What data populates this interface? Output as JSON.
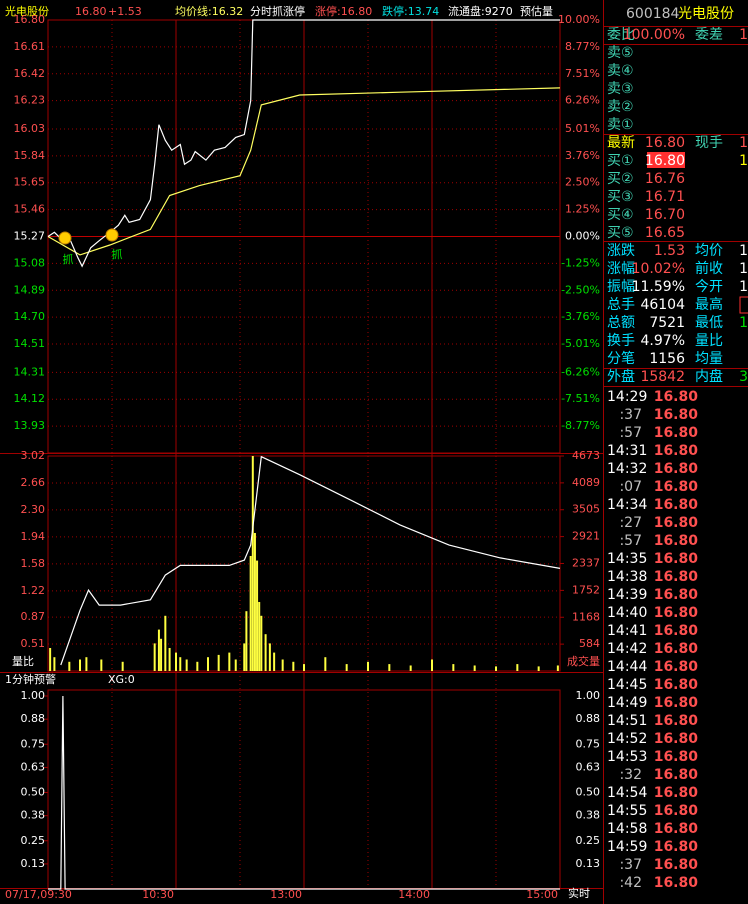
{
  "header": {
    "items": [
      "光电股份",
      "16.80",
      "+1.53",
      "均价线:16.32",
      "分时抓涨停",
      "涨停:16.80",
      "跌停:13.74",
      "流通盘:9270",
      "预估量"
    ]
  },
  "price_panel": {
    "ylim": [
      13.74,
      16.8
    ],
    "yticks": [
      {
        "value": 16.8,
        "label": "16.80"
      },
      16.61,
      16.42,
      16.23,
      16.03,
      15.84,
      15.65,
      15.46,
      15.27,
      15.08,
      14.89,
      {
        "value": 14.7,
        "label": "14.70"
      },
      14.51,
      14.31,
      14.12,
      13.93
    ],
    "pct_ticks": [
      "10.00%",
      "8.77%",
      "7.51%",
      "6.26%",
      "5.01%",
      "3.76%",
      "2.50%",
      "1.25%",
      "0.00%",
      "-1.25%",
      "-2.50%",
      "-3.76%",
      "-5.01%",
      "-6.26%",
      "-7.51%",
      "-8.77%"
    ],
    "price": {
      "x": [
        "09:30",
        "09:33",
        "09:37",
        "09:40",
        "09:44",
        "09:46",
        "09:50",
        "09:54",
        "09:59",
        "10:03",
        "10:06",
        "10:08",
        "10:13",
        "10:18",
        "10:20",
        "10:22",
        "10:25",
        "10:28",
        "10:32",
        "10:34",
        "10:37",
        "10:39",
        "10:44",
        "10:48",
        "10:53",
        "10:58",
        "11:02",
        "11:05",
        "11:06",
        "15:00"
      ],
      "values": [
        15.27,
        15.3,
        15.24,
        15.26,
        15.12,
        15.06,
        15.19,
        15.24,
        15.3,
        15.35,
        15.42,
        15.37,
        15.39,
        15.53,
        15.78,
        16.06,
        15.95,
        15.88,
        15.92,
        15.78,
        15.81,
        15.87,
        15.81,
        15.88,
        15.9,
        15.97,
        15.99,
        16.23,
        16.8,
        16.8
      ]
    },
    "avg": {
      "x": [
        "09:30",
        "09:45",
        "09:59",
        "10:18",
        "10:27",
        "10:41",
        "11:00",
        "11:05",
        "11:10",
        "11:28",
        "13:45",
        "15:00"
      ],
      "values": [
        15.27,
        15.14,
        15.21,
        15.32,
        15.56,
        15.63,
        15.7,
        15.88,
        16.2,
        16.27,
        16.29,
        16.32
      ]
    },
    "annotations": [
      "抓",
      "抓"
    ]
  },
  "volume_panel": {
    "ylim": [
      0,
      4673
    ],
    "ratio_ylim": [
      0.15,
      3.02
    ],
    "ratio_ticks": [
      3.02,
      2.66,
      {
        "value": 2.3,
        "label": "2.30"
      },
      1.94,
      1.58,
      1.22,
      0.87,
      0.51
    ],
    "volume_ticks": [
      4673,
      4089,
      3505,
      2921,
      2337,
      1752,
      1168,
      584
    ],
    "left_label": "量比",
    "right_label": "成交量",
    "volume": {
      "x": [
        "09:31",
        "09:33",
        "09:40",
        "09:45",
        "09:48",
        "09:55",
        "10:05",
        "10:20",
        "10:22",
        "10:23",
        "10:25",
        "10:27",
        "10:30",
        "10:32",
        "10:35",
        "10:40",
        "10:45",
        "10:50",
        "10:55",
        "10:58",
        "11:02",
        "11:03",
        "11:05",
        "11:06",
        "11:07",
        "11:08",
        "11:09",
        "11:10",
        "11:12",
        "11:14",
        "11:16",
        "11:20",
        "11:25",
        "11:30",
        "13:10",
        "13:20",
        "13:30",
        "13:40",
        "13:50",
        "14:00",
        "14:10",
        "14:20",
        "14:30",
        "14:40",
        "14:50",
        "14:59"
      ],
      "values": [
        500,
        300,
        200,
        250,
        300,
        250,
        200,
        600,
        900,
        700,
        1200,
        500,
        400,
        300,
        250,
        200,
        300,
        350,
        400,
        250,
        600,
        1300,
        2500,
        4673,
        3000,
        2400,
        1500,
        1200,
        800,
        600,
        400,
        250,
        200,
        150,
        300,
        150,
        200,
        150,
        120,
        250,
        150,
        120,
        100,
        150,
        100,
        120
      ]
    },
    "ratio": {
      "x": [
        "09:36",
        "09:45",
        "09:49",
        "09:54",
        "10:04",
        "10:18",
        "10:25",
        "10:32",
        "10:55",
        "11:02",
        "11:05",
        "11:10",
        "11:28",
        "13:22",
        "13:45",
        "14:08",
        "14:32",
        "15:00"
      ],
      "values": [
        0.23,
        0.96,
        1.23,
        1.03,
        1.03,
        1.1,
        1.43,
        1.56,
        1.56,
        1.63,
        1.83,
        3.01,
        2.77,
        2.43,
        2.1,
        1.83,
        1.66,
        1.52
      ]
    }
  },
  "alert_panel": {
    "title": "1分钟预警",
    "indicator": "XG:0",
    "ylim": [
      0,
      1
    ],
    "yticks": [
      {
        "value": 1,
        "label": "1.00"
      },
      0.88,
      0.75,
      0.63,
      {
        "value": 0.5,
        "label": "0.50"
      },
      0.38,
      0.25,
      0.13
    ],
    "right_label": "实时",
    "xg": {
      "x": [
        "09:30",
        "09:36",
        "09:37",
        "09:38",
        "15:00"
      ],
      "values": [
        0,
        0,
        1,
        0,
        0
      ]
    }
  },
  "time_axis": {
    "labels": [
      "07/17,09:30",
      "10:30",
      "13:00",
      "14:00",
      "15:00"
    ]
  },
  "quote": {
    "code": "600184",
    "name": "光电股份",
    "ratio_row": [
      "委比",
      "100.00%",
      "委差",
      "1"
    ],
    "sell_rows": [
      "卖⑤",
      "卖④",
      "卖③",
      "卖②",
      "卖①"
    ],
    "latest_row": [
      "最新",
      "16.80",
      "现手",
      "1"
    ],
    "buy_rows": [
      [
        "买①",
        "16.80",
        "1"
      ],
      [
        "买②",
        "16.76"
      ],
      [
        "买③",
        "16.71"
      ],
      [
        "买④",
        "16.70"
      ],
      [
        "买⑤",
        "16.65"
      ]
    ],
    "stat_rows": [
      [
        "涨跌",
        "1.53",
        "均价",
        "1"
      ],
      [
        "涨幅",
        "10.02%",
        "前收",
        "1"
      ],
      [
        "振幅",
        "11.59%",
        "今开",
        "1"
      ],
      [
        "总手",
        "46104",
        "最高"
      ],
      [
        "总额",
        "7521",
        "最低",
        "1"
      ],
      [
        "换手",
        "4.97%",
        "量比"
      ],
      [
        "分笔",
        "1156",
        "均量"
      ]
    ],
    "outer_row": [
      "外盘",
      "15842",
      "内盘",
      "3"
    ],
    "trades": [
      [
        "14:29",
        "16.80"
      ],
      [
        ":37",
        "16.80"
      ],
      [
        ":57",
        "16.80"
      ],
      [
        "14:31",
        "16.80"
      ],
      [
        "14:32",
        "16.80"
      ],
      [
        ":07",
        "16.80"
      ],
      [
        "14:34",
        "16.80"
      ],
      [
        ":27",
        "16.80"
      ],
      [
        ":57",
        "16.80"
      ],
      [
        "14:35",
        "16.80"
      ],
      [
        "14:38",
        "16.80"
      ],
      [
        "14:39",
        "16.80"
      ],
      [
        "14:40",
        "16.80"
      ],
      [
        "14:41",
        "16.80"
      ],
      [
        "14:42",
        "16.80"
      ],
      [
        "14:44",
        "16.80"
      ],
      [
        "14:45",
        "16.80"
      ],
      [
        "14:49",
        "16.80"
      ],
      [
        "14:51",
        "16.80"
      ],
      [
        "14:52",
        "16.80"
      ],
      [
        "14:53",
        "16.80"
      ],
      [
        ":32",
        "16.80"
      ],
      [
        "14:54",
        "16.80"
      ],
      [
        "14:55",
        "16.80"
      ],
      [
        "14:58",
        "16.80"
      ],
      [
        "14:59",
        "16.80"
      ],
      [
        ":37",
        "16.80"
      ],
      [
        ":42",
        "16.80"
      ]
    ]
  }
}
